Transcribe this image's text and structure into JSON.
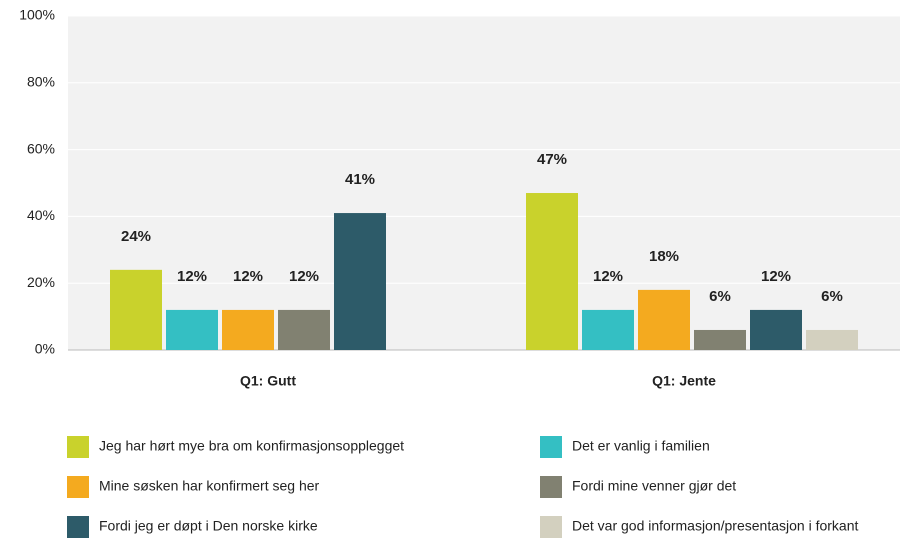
{
  "chart_data": {
    "type": "bar",
    "categories": [
      "Q1: Gutt",
      "Q1: Jente"
    ],
    "series": [
      {
        "name": "Jeg har hørt mye bra om konfirmasjonsopplegget",
        "color": "#c9d22c",
        "values": [
          24,
          47
        ],
        "value_labels": [
          "24%",
          "47%"
        ]
      },
      {
        "name": "Det er vanlig i familien",
        "color": "#34bfc3",
        "values": [
          12,
          12
        ],
        "value_labels": [
          "12%",
          "12%"
        ]
      },
      {
        "name": "Mine søsken har konfirmert seg her",
        "color": "#f4aa1f",
        "values": [
          12,
          18
        ],
        "value_labels": [
          "12%",
          "18%"
        ]
      },
      {
        "name": "Fordi mine venner gjør det",
        "color": "#818171",
        "values": [
          12,
          6
        ],
        "value_labels": [
          "12%",
          "6%"
        ]
      },
      {
        "name": "Fordi jeg er døpt i Den norske kirke",
        "color": "#2d5b69",
        "values": [
          41,
          12
        ],
        "value_labels": [
          "41%",
          "12%"
        ]
      },
      {
        "name": "Det var god informasjon/presentasjon i forkant",
        "color": "#d3d0bf",
        "values": [
          null,
          6
        ],
        "value_labels": [
          null,
          "6%"
        ]
      }
    ],
    "ylim": [
      0,
      100
    ],
    "yticks": [
      {
        "value": 0,
        "label": "0%"
      },
      {
        "value": 20,
        "label": "20%"
      },
      {
        "value": 40,
        "label": "40%"
      },
      {
        "value": 60,
        "label": "60%"
      },
      {
        "value": 80,
        "label": "80%"
      },
      {
        "value": 100,
        "label": "100%"
      }
    ],
    "grid": true
  }
}
